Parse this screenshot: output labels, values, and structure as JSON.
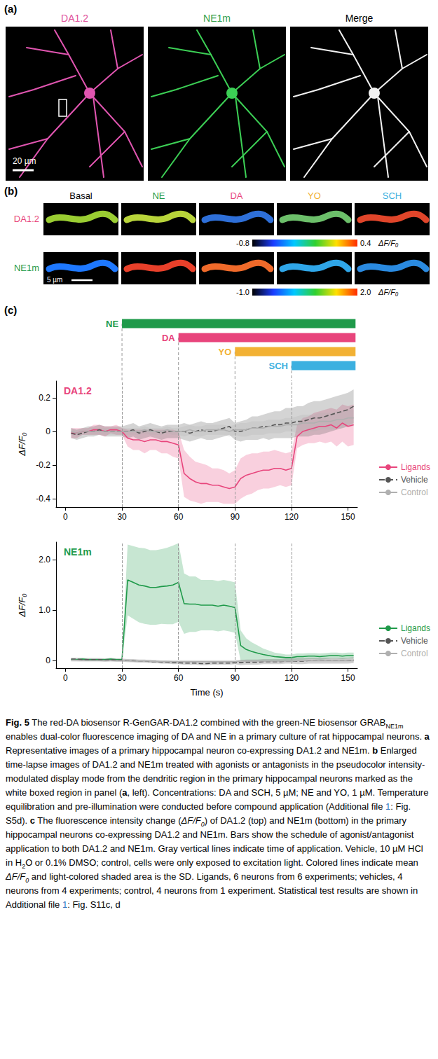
{
  "panel_a": {
    "letter": "(a)",
    "images": [
      {
        "title": "DA1.2",
        "color": "#e0509a"
      },
      {
        "title": "NE1m",
        "color": "#2e9e4a"
      },
      {
        "title": "Merge",
        "color": "#000000"
      }
    ],
    "scale_bar": "20 µm"
  },
  "panel_b": {
    "letter": "(b)",
    "columns": [
      {
        "label": "Basal",
        "color": "#000000"
      },
      {
        "label": "NE",
        "color": "#1f9a4a"
      },
      {
        "label": "DA",
        "color": "#e8457c"
      },
      {
        "label": "YO",
        "color": "#f2b134"
      },
      {
        "label": "SCH",
        "color": "#3cb0e0"
      }
    ],
    "rows": [
      {
        "label": "DA1.2",
        "color": "#e8457c",
        "colorbar": {
          "range": [
            -0.8,
            0.4
          ],
          "ticks": [
            -0.8,
            0.4
          ],
          "label": "ΔF/F₀"
        }
      },
      {
        "label": "NE1m",
        "color": "#1f9a4a",
        "scale_bar": "5 µm",
        "colorbar": {
          "range": [
            -1.0,
            2.0
          ],
          "ticks": [
            {
              "value": -1,
              "label": "-1.0"
            },
            {
              "value": 2,
              "label": "2.0"
            }
          ],
          "label": "ΔF/F₀"
        }
      }
    ]
  },
  "panel_c": {
    "letter": "(c)",
    "bars": [
      {
        "name": "NE",
        "start": 30,
        "end": 154,
        "color": "#1f9a4a"
      },
      {
        "name": "DA",
        "start": 60,
        "end": 154,
        "color": "#e8457c"
      },
      {
        "name": "YO",
        "start": 90,
        "end": 154,
        "color": "#f2b134"
      },
      {
        "name": "SCH",
        "start": 120,
        "end": 154,
        "color": "#3cb0e0"
      }
    ]
  },
  "chart_data": [
    {
      "type": "line",
      "title": "DA1.2",
      "ylabel": "ΔF/F₀",
      "grid": false,
      "legend": "right",
      "xlim": [
        -5,
        155
      ],
      "xticks": [
        0,
        30,
        60,
        90,
        120,
        150
      ],
      "ylim": [
        -0.45,
        0.3
      ],
      "yticks": [
        -0.4,
        -0.2,
        0,
        0.2
      ],
      "x": [
        3,
        6,
        9,
        12,
        15,
        18,
        21,
        24,
        27,
        30,
        33,
        36,
        39,
        42,
        45,
        48,
        51,
        54,
        57,
        60,
        63,
        66,
        69,
        72,
        75,
        78,
        81,
        84,
        87,
        90,
        93,
        96,
        99,
        102,
        105,
        108,
        111,
        114,
        117,
        120,
        123,
        126,
        129,
        132,
        135,
        138,
        141,
        144,
        147,
        150,
        153
      ],
      "series": [
        {
          "name": "Ligands",
          "color": "#e8457c",
          "line_style": "solid",
          "values": [
            -0.01,
            -0.01,
            0.0,
            0.0,
            0.01,
            0.01,
            0.0,
            0.01,
            0.01,
            0.0,
            -0.04,
            -0.05,
            -0.05,
            -0.06,
            -0.05,
            -0.05,
            -0.06,
            -0.06,
            -0.07,
            -0.08,
            -0.25,
            -0.28,
            -0.3,
            -0.31,
            -0.31,
            -0.32,
            -0.32,
            -0.33,
            -0.34,
            -0.33,
            -0.28,
            -0.26,
            -0.25,
            -0.24,
            -0.23,
            -0.23,
            -0.22,
            -0.22,
            -0.23,
            -0.22,
            -0.03,
            0.0,
            0.01,
            0.02,
            0.03,
            0.03,
            0.04,
            0.02,
            0.05,
            0.03,
            0.04
          ],
          "sd": [
            0.03,
            0.03,
            0.02,
            0.02,
            0.03,
            0.03,
            0.03,
            0.02,
            0.03,
            0.02,
            0.05,
            0.06,
            0.06,
            0.07,
            0.06,
            0.06,
            0.07,
            0.07,
            0.08,
            0.08,
            0.14,
            0.13,
            0.12,
            0.12,
            0.11,
            0.1,
            0.1,
            0.1,
            0.09,
            0.1,
            0.12,
            0.12,
            0.12,
            0.11,
            0.11,
            0.11,
            0.11,
            0.1,
            0.1,
            0.1,
            0.07,
            0.08,
            0.08,
            0.09,
            0.09,
            0.1,
            0.1,
            0.11,
            0.11,
            0.12,
            0.12
          ]
        },
        {
          "name": "Vehicle",
          "color": "#555555",
          "line_style": "dashed",
          "values": [
            -0.01,
            -0.02,
            -0.01,
            0.0,
            0.0,
            0.01,
            0.0,
            0.0,
            0.0,
            0.0,
            0.0,
            0.01,
            -0.01,
            0.0,
            0.01,
            0.0,
            -0.01,
            0.0,
            0.0,
            0.0,
            0.0,
            -0.01,
            0.0,
            0.01,
            0.0,
            0.0,
            0.01,
            0.02,
            0.03,
            0.0,
            0.0,
            0.01,
            0.02,
            0.02,
            0.03,
            0.03,
            0.04,
            0.04,
            0.05,
            0.05,
            0.06,
            0.06,
            0.07,
            0.08,
            0.08,
            0.09,
            0.1,
            0.11,
            0.12,
            0.13,
            0.15
          ],
          "sd": [
            0.03,
            0.03,
            0.03,
            0.03,
            0.03,
            0.03,
            0.03,
            0.03,
            0.03,
            0.03,
            0.04,
            0.04,
            0.04,
            0.04,
            0.04,
            0.04,
            0.04,
            0.04,
            0.04,
            0.04,
            0.05,
            0.05,
            0.05,
            0.05,
            0.05,
            0.05,
            0.05,
            0.05,
            0.05,
            0.05,
            0.06,
            0.06,
            0.07,
            0.07,
            0.07,
            0.08,
            0.08,
            0.08,
            0.09,
            0.09,
            0.09,
            0.09,
            0.1,
            0.1,
            0.1,
            0.1,
            0.1,
            0.1,
            0.1,
            0.1,
            0.1
          ]
        },
        {
          "name": "Control",
          "color": "#b0b0b0",
          "line_style": "solid",
          "values": [
            0.0,
            -0.01,
            0.0,
            0.0,
            0.0,
            0.0,
            0.0,
            0.0,
            0.0,
            0.0,
            0.0,
            0.0,
            0.0,
            0.01,
            0.0,
            0.0,
            0.0,
            0.01,
            0.0,
            0.0,
            0.0,
            0.01,
            0.0,
            0.0,
            0.01,
            0.01,
            0.01,
            0.01,
            0.0,
            0.01,
            0.01,
            0.01,
            0.02,
            0.02,
            0.02,
            0.03,
            0.03,
            0.03,
            0.04,
            0.04,
            0.04,
            0.05,
            0.05,
            0.05,
            0.06,
            0.06,
            0.06,
            0.07,
            0.07,
            0.08,
            0.08
          ],
          "sd": [
            0.02,
            0.02,
            0.02,
            0.02,
            0.02,
            0.02,
            0.02,
            0.02,
            0.02,
            0.02,
            0.02,
            0.02,
            0.02,
            0.02,
            0.02,
            0.02,
            0.02,
            0.02,
            0.02,
            0.02,
            0.03,
            0.03,
            0.03,
            0.03,
            0.03,
            0.03,
            0.03,
            0.03,
            0.03,
            0.03,
            0.04,
            0.04,
            0.04,
            0.04,
            0.04,
            0.04,
            0.04,
            0.04,
            0.04,
            0.04,
            0.05,
            0.05,
            0.05,
            0.05,
            0.05,
            0.05,
            0.05,
            0.05,
            0.05,
            0.05,
            0.05
          ]
        }
      ]
    },
    {
      "type": "line",
      "title": "NE1m",
      "xlabel": "Time (s)",
      "ylabel": "ΔF/F₀",
      "grid": false,
      "legend": "right",
      "xlim": [
        -5,
        155
      ],
      "xticks": [
        0,
        30,
        60,
        90,
        120,
        150
      ],
      "ylim": [
        -0.15,
        2.35
      ],
      "yticks": [
        0,
        {
          "value": 1,
          "label": "1.0"
        },
        {
          "value": 2,
          "label": "2.0"
        }
      ],
      "x": [
        3,
        6,
        9,
        12,
        15,
        18,
        21,
        24,
        27,
        30,
        33,
        36,
        39,
        42,
        45,
        48,
        51,
        54,
        57,
        60,
        63,
        66,
        69,
        72,
        75,
        78,
        81,
        84,
        87,
        90,
        93,
        96,
        99,
        102,
        105,
        108,
        111,
        114,
        117,
        120,
        123,
        126,
        129,
        132,
        135,
        138,
        141,
        144,
        147,
        150,
        153
      ],
      "series": [
        {
          "name": "Ligands",
          "color": "#1f9a4a",
          "line_style": "solid",
          "values": [
            0.02,
            0.02,
            0.03,
            0.02,
            0.02,
            0.02,
            0.02,
            0.03,
            0.02,
            0.02,
            1.6,
            1.55,
            1.5,
            1.48,
            1.45,
            1.45,
            1.47,
            1.48,
            1.5,
            1.55,
            1.13,
            1.12,
            1.12,
            1.1,
            1.1,
            1.1,
            1.08,
            1.1,
            1.08,
            1.05,
            0.3,
            0.22,
            0.18,
            0.15,
            0.12,
            0.1,
            0.08,
            0.07,
            0.06,
            0.06,
            0.08,
            0.08,
            0.09,
            0.09,
            0.08,
            0.09,
            0.1,
            0.1,
            0.09,
            0.1,
            0.1
          ],
          "sd": [
            0.02,
            0.02,
            0.02,
            0.02,
            0.02,
            0.02,
            0.02,
            0.02,
            0.02,
            0.02,
            0.7,
            0.72,
            0.74,
            0.75,
            0.74,
            0.74,
            0.74,
            0.76,
            0.78,
            0.78,
            0.6,
            0.55,
            0.55,
            0.5,
            0.5,
            0.5,
            0.5,
            0.5,
            0.5,
            0.5,
            0.3,
            0.22,
            0.18,
            0.15,
            0.12,
            0.1,
            0.08,
            0.07,
            0.06,
            0.06,
            0.06,
            0.06,
            0.06,
            0.06,
            0.06,
            0.06,
            0.06,
            0.06,
            0.06,
            0.06,
            0.06
          ]
        },
        {
          "name": "Vehicle",
          "color": "#555555",
          "line_style": "dashed",
          "values": [
            0.03,
            0.03,
            0.02,
            0.02,
            0.02,
            0.02,
            0.01,
            0.02,
            0.01,
            0.01,
            0.0,
            0.0,
            -0.01,
            -0.01,
            -0.02,
            -0.02,
            -0.03,
            -0.03,
            -0.04,
            -0.04,
            -0.05,
            -0.05,
            -0.05,
            -0.06,
            -0.06,
            -0.05,
            -0.05,
            -0.05,
            -0.05,
            -0.04,
            -0.04,
            -0.03,
            -0.03,
            -0.03,
            -0.02,
            -0.02,
            -0.02,
            -0.02,
            -0.01,
            -0.01,
            -0.01,
            -0.01,
            0.0,
            0.0,
            0.0,
            0.0,
            0.0,
            0.0,
            0.0,
            0.0,
            0.01
          ],
          "sd": [
            0.03,
            0.03,
            0.03,
            0.03,
            0.03,
            0.03,
            0.03,
            0.03,
            0.03,
            0.03,
            0.03,
            0.03,
            0.03,
            0.03,
            0.03,
            0.03,
            0.03,
            0.03,
            0.03,
            0.03,
            0.03,
            0.03,
            0.03,
            0.03,
            0.03,
            0.03,
            0.03,
            0.03,
            0.03,
            0.03,
            0.05,
            0.05,
            0.05,
            0.05,
            0.05,
            0.05,
            0.05,
            0.05,
            0.05,
            0.05,
            0.06,
            0.06,
            0.06,
            0.06,
            0.06,
            0.06,
            0.06,
            0.06,
            0.06,
            0.06,
            0.06
          ]
        },
        {
          "name": "Control",
          "color": "#b0b0b0",
          "line_style": "solid",
          "values": [
            0.01,
            0.01,
            0.0,
            0.0,
            0.0,
            0.0,
            0.0,
            0.0,
            0.0,
            0.0,
            0.0,
            -0.01,
            -0.01,
            -0.01,
            -0.01,
            -0.02,
            -0.02,
            -0.02,
            -0.02,
            -0.02,
            -0.02,
            -0.02,
            -0.02,
            -0.02,
            -0.02,
            -0.02,
            -0.02,
            -0.02,
            -0.02,
            -0.02,
            -0.01,
            -0.01,
            -0.01,
            -0.01,
            -0.01,
            -0.01,
            -0.01,
            -0.01,
            -0.01,
            -0.01,
            0.0,
            0.0,
            0.0,
            0.0,
            0.0,
            0.0,
            0.0,
            0.0,
            0.0,
            0.0,
            0.0
          ],
          "sd": [
            0.03,
            0.03,
            0.03,
            0.03,
            0.03,
            0.03,
            0.03,
            0.03,
            0.03,
            0.03,
            0.03,
            0.03,
            0.03,
            0.03,
            0.03,
            0.03,
            0.03,
            0.03,
            0.03,
            0.03,
            0.03,
            0.03,
            0.03,
            0.03,
            0.03,
            0.03,
            0.03,
            0.03,
            0.03,
            0.03,
            0.03,
            0.03,
            0.03,
            0.03,
            0.03,
            0.03,
            0.03,
            0.03,
            0.03,
            0.03,
            0.03,
            0.03,
            0.03,
            0.03,
            0.03,
            0.03,
            0.03,
            0.03,
            0.03,
            0.03,
            0.03
          ]
        }
      ]
    }
  ],
  "caption": [
    {
      "text": "Fig. 5",
      "style": "bold"
    },
    {
      "text": " The red-DA biosensor R-GenGAR-DA1.2 combined with the green-NE biosensor GRAB",
      "style": "plain"
    },
    {
      "text": "NE1m",
      "style": "sub"
    },
    {
      "text": " enables dual-color fluorescence imaging of DA and NE in a primary culture of rat hippocampal neurons. ",
      "style": "plain"
    },
    {
      "text": "a",
      "style": "bold"
    },
    {
      "text": " Representative images of a primary hippocampal neuron co-expressing DA1.2 and NE1m. ",
      "style": "plain"
    },
    {
      "text": "b",
      "style": "bold"
    },
    {
      "text": " Enlarged time-lapse images of DA1.2 and NE1m treated with agonists or antagonists in the pseudocolor intensity-modulated display mode from the dendritic region in the primary hippocampal neurons marked as the white boxed region in panel (",
      "style": "plain"
    },
    {
      "text": "a",
      "style": "bold"
    },
    {
      "text": ", left). Concentrations: DA and SCH, 5 µM; NE and YO, 1 µM. Temperature equilibration and pre-illumination were conducted before compound application (Additional file ",
      "style": "plain"
    },
    {
      "text": "1",
      "style": "link"
    },
    {
      "text": ": Fig. S5d). ",
      "style": "plain"
    },
    {
      "text": "c",
      "style": "bold"
    },
    {
      "text": " The fluorescence intensity change (",
      "style": "plain"
    },
    {
      "text": "ΔF/F",
      "style": "italic"
    },
    {
      "text": "0",
      "style": "italic-sub"
    },
    {
      "text": ") of DA1.2 (top) and NE1m (bottom) in the primary hippocampal neurons co-expressing DA1.2 and NE1m. Bars show the schedule of agonist/antagonist application to both DA1.2 and NE1m. Gray vertical lines indicate time of application. Vehicle, 10 µM HCl in H",
      "style": "plain"
    },
    {
      "text": "2",
      "style": "sub"
    },
    {
      "text": "O or 0.1% DMSO; control, cells were only exposed to excitation light. Colored lines indicate mean ",
      "style": "plain"
    },
    {
      "text": "ΔF/F",
      "style": "italic"
    },
    {
      "text": "0",
      "style": "italic-sub"
    },
    {
      "text": " and light-colored shaded area is the SD. Ligands, 6 neurons from 6 experiments; vehicles, 4 neurons from 4 experiments; control, 4 neurons from 1 experiment. Statistical test results are shown in Additional file ",
      "style": "plain"
    },
    {
      "text": "1",
      "style": "link"
    },
    {
      "text": ": Fig. S11c, d",
      "style": "plain"
    }
  ]
}
